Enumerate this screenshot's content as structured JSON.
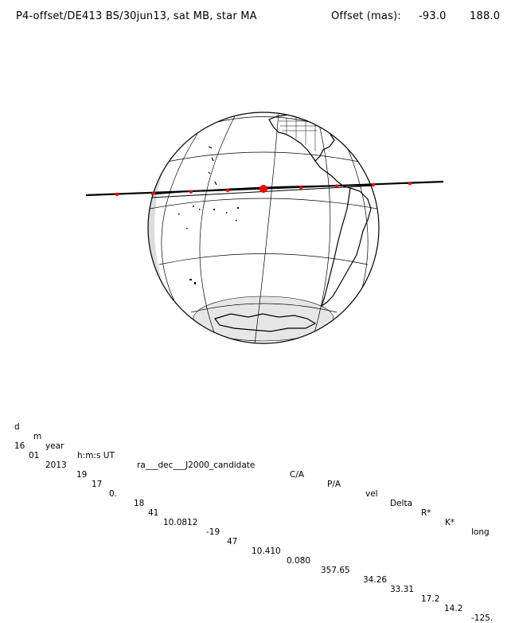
{
  "header": {
    "title": "P4-offset/DE413 BS/30jun13, sat MB, star MA",
    "offset_label": "Offset (mas):",
    "offset_x": "-93.0",
    "offset_y": "188.0"
  },
  "table": {
    "columns": [
      "d",
      "m",
      "year",
      "h:m:s UT",
      "ra___dec___J2000_candidate",
      "C/A",
      "P/A",
      "vel",
      "Delta",
      "R*",
      "K*",
      "long"
    ],
    "values": [
      "16",
      "01",
      "2013",
      "19",
      "17",
      "0.",
      "18",
      "41",
      "10.0812",
      "-19",
      "47",
      "10.410",
      "0.080",
      "357.65",
      "34.26",
      "33.31",
      "17.2",
      "14.2",
      "-125."
    ]
  },
  "map": {
    "type": "orthographic globe occultation path",
    "track_color": "#000000",
    "marker_color": "#ff0000",
    "minute_markers": 9
  }
}
